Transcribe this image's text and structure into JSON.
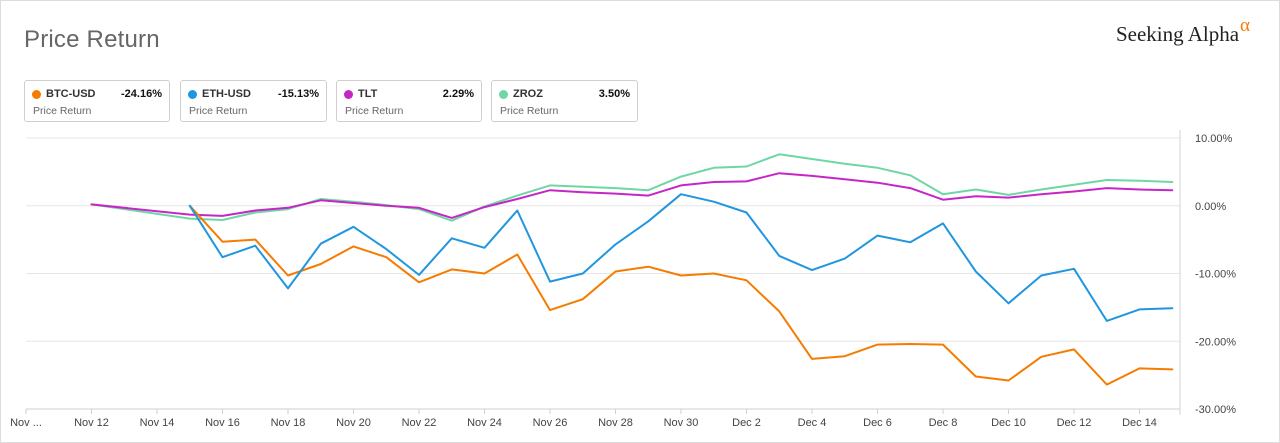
{
  "header": {
    "title": "Price Return",
    "brand_text": "Seeking Alpha",
    "brand_symbol": "α"
  },
  "legend": [
    {
      "name": "BTC-USD",
      "value": "-24.16%",
      "sub": "Price Return",
      "color": "#f57c00"
    },
    {
      "name": "ETH-USD",
      "value": "-15.13%",
      "sub": "Price Return",
      "color": "#2196e0"
    },
    {
      "name": "TLT",
      "value": "2.29%",
      "sub": "Price Return",
      "color": "#c626c6"
    },
    {
      "name": "ZROZ",
      "value": "3.50%",
      "sub": "Price Return",
      "color": "#6ed7a4"
    }
  ],
  "chart_data": {
    "type": "line",
    "title": "Price Return",
    "xlabel": "",
    "ylabel": "",
    "x_index_range": [
      -2,
      33.6
    ],
    "ylim": [
      -30,
      10
    ],
    "y_ticks": [
      10,
      0,
      -10,
      -20,
      -30
    ],
    "y_tick_labels": [
      "10.00%",
      "0.00%",
      "-10.00%",
      "-20.00%",
      "-30.00%"
    ],
    "grid": true,
    "x_ticks": [
      {
        "i": -2,
        "label": "Nov ..."
      },
      {
        "i": 0,
        "label": "Nov 12"
      },
      {
        "i": 2,
        "label": "Nov 14"
      },
      {
        "i": 4,
        "label": "Nov 16"
      },
      {
        "i": 6,
        "label": "Nov 18"
      },
      {
        "i": 8,
        "label": "Nov 20"
      },
      {
        "i": 10,
        "label": "Nov 22"
      },
      {
        "i": 12,
        "label": "Nov 24"
      },
      {
        "i": 14,
        "label": "Nov 26"
      },
      {
        "i": 16,
        "label": "Nov 28"
      },
      {
        "i": 18,
        "label": "Nov 30"
      },
      {
        "i": 20,
        "label": "Dec 2"
      },
      {
        "i": 22,
        "label": "Dec 4"
      },
      {
        "i": 24,
        "label": "Dec 6"
      },
      {
        "i": 26,
        "label": "Dec 8"
      },
      {
        "i": 28,
        "label": "Dec 10"
      },
      {
        "i": 30,
        "label": "Dec 12"
      },
      {
        "i": 32,
        "label": "Dec 14"
      }
    ],
    "series": [
      {
        "name": "BTC-USD",
        "color": "#f57c00",
        "points": [
          [
            3,
            0
          ],
          [
            4,
            -5.3
          ],
          [
            5,
            -5
          ],
          [
            6,
            -10.3
          ],
          [
            7,
            -8.6
          ],
          [
            8,
            -6
          ],
          [
            9,
            -7.6
          ],
          [
            10,
            -11.3
          ],
          [
            11,
            -9.4
          ],
          [
            12,
            -10
          ],
          [
            13,
            -7.2
          ],
          [
            14,
            -15.4
          ],
          [
            15,
            -13.8
          ],
          [
            16,
            -9.7
          ],
          [
            17,
            -9
          ],
          [
            18,
            -10.3
          ],
          [
            19,
            -10
          ],
          [
            20,
            -11
          ],
          [
            21,
            -15.6
          ],
          [
            22,
            -22.6
          ],
          [
            23,
            -22.2
          ],
          [
            24,
            -20.5
          ],
          [
            25,
            -20.4
          ],
          [
            26,
            -20.5
          ],
          [
            27,
            -25.2
          ],
          [
            28,
            -25.8
          ],
          [
            29,
            -22.3
          ],
          [
            30,
            -21.2
          ],
          [
            31,
            -26.4
          ],
          [
            32,
            -24
          ],
          [
            33,
            -24.16
          ]
        ]
      },
      {
        "name": "ETH-USD",
        "color": "#2196e0",
        "points": [
          [
            3,
            0
          ],
          [
            4,
            -7.6
          ],
          [
            5,
            -5.9
          ],
          [
            6,
            -12.2
          ],
          [
            7,
            -5.6
          ],
          [
            8,
            -3.1
          ],
          [
            9,
            -6.4
          ],
          [
            10,
            -10.2
          ],
          [
            11,
            -4.8
          ],
          [
            12,
            -6.2
          ],
          [
            13,
            -0.7
          ],
          [
            14,
            -11.2
          ],
          [
            15,
            -10
          ],
          [
            16,
            -5.7
          ],
          [
            17,
            -2.3
          ],
          [
            18,
            1.7
          ],
          [
            19,
            0.6
          ],
          [
            20,
            -1
          ],
          [
            21,
            -7.4
          ],
          [
            22,
            -9.5
          ],
          [
            23,
            -7.8
          ],
          [
            24,
            -4.4
          ],
          [
            25,
            -5.4
          ],
          [
            26,
            -2.6
          ],
          [
            27,
            -9.7
          ],
          [
            28,
            -14.4
          ],
          [
            29,
            -10.3
          ],
          [
            30,
            -9.3
          ],
          [
            31,
            -17
          ],
          [
            32,
            -15.3
          ],
          [
            33,
            -15.13
          ]
        ]
      },
      {
        "name": "TLT",
        "color": "#c626c6",
        "points": [
          [
            0,
            0.2
          ],
          [
            3,
            -1.3
          ],
          [
            4,
            -1.5
          ],
          [
            5,
            -0.7
          ],
          [
            6,
            -0.3
          ],
          [
            7,
            0.8
          ],
          [
            8,
            0.4
          ],
          [
            9,
            0
          ],
          [
            10,
            -0.3
          ],
          [
            11,
            -1.8
          ],
          [
            12,
            -0.2
          ],
          [
            13,
            1
          ],
          [
            14,
            2.3
          ],
          [
            15,
            2
          ],
          [
            16,
            1.8
          ],
          [
            17,
            1.5
          ],
          [
            18,
            3
          ],
          [
            19,
            3.5
          ],
          [
            20,
            3.6
          ],
          [
            21,
            4.8
          ],
          [
            22,
            4.4
          ],
          [
            23,
            3.9
          ],
          [
            24,
            3.4
          ],
          [
            25,
            2.6
          ],
          [
            26,
            0.9
          ],
          [
            27,
            1.4
          ],
          [
            28,
            1.2
          ],
          [
            29,
            1.7
          ],
          [
            30,
            2.1
          ],
          [
            31,
            2.6
          ],
          [
            32,
            2.4
          ],
          [
            33,
            2.29
          ]
        ]
      },
      {
        "name": "ZROZ",
        "color": "#6ed7a4",
        "points": [
          [
            0,
            0.2
          ],
          [
            3,
            -1.9
          ],
          [
            4,
            -2.1
          ],
          [
            5,
            -1
          ],
          [
            6,
            -0.5
          ],
          [
            7,
            1
          ],
          [
            8,
            0.6
          ],
          [
            9,
            0.1
          ],
          [
            10,
            -0.5
          ],
          [
            11,
            -2.2
          ],
          [
            12,
            -0.1
          ],
          [
            13,
            1.5
          ],
          [
            14,
            3
          ],
          [
            15,
            2.8
          ],
          [
            16,
            2.6
          ],
          [
            17,
            2.3
          ],
          [
            18,
            4.3
          ],
          [
            19,
            5.6
          ],
          [
            20,
            5.8
          ],
          [
            21,
            7.6
          ],
          [
            22,
            6.9
          ],
          [
            23,
            6.2
          ],
          [
            24,
            5.6
          ],
          [
            25,
            4.5
          ],
          [
            26,
            1.7
          ],
          [
            27,
            2.4
          ],
          [
            28,
            1.6
          ],
          [
            29,
            2.4
          ],
          [
            30,
            3.1
          ],
          [
            31,
            3.8
          ],
          [
            32,
            3.7
          ],
          [
            33,
            3.5
          ]
        ]
      }
    ]
  }
}
